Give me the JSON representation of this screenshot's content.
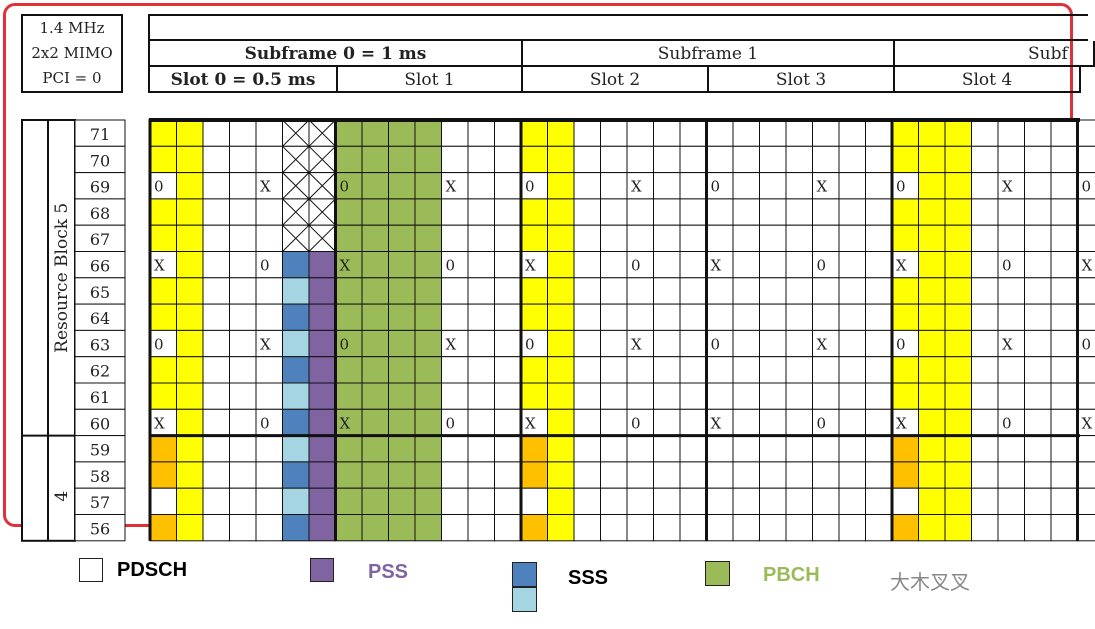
{
  "info": {
    "lines": [
      "1.4 MHz",
      "2x2 MIMO",
      "PCI = 0"
    ]
  },
  "subframes": [
    "Subframe 0 = 1 ms",
    "Subframe 1",
    "Subf"
  ],
  "slots": [
    "Slot 0 = 0.5 ms",
    "Slot 1",
    "Slot 2",
    "Slot 3",
    "Slot 4"
  ],
  "rb_labels": [
    "Resource Block 5",
    "4"
  ],
  "subcarriers": [
    "71",
    "70",
    "69",
    "68",
    "67",
    "66",
    "65",
    "64",
    "63",
    "62",
    "61",
    "60",
    "59",
    "58",
    "57",
    "56"
  ],
  "colors": {
    "frame": "#e0303a",
    "yellow": "#ffff00",
    "orange": "#ffc000",
    "green": "#9bbb59",
    "pss": "#8064a2",
    "sss_dark": "#4f81bd",
    "sss_light": "#a5d5e3",
    "pdsch": "#ffffff"
  },
  "legend": [
    {
      "label": "PDSCH",
      "color": "#ffffff",
      "text_color": "#111111"
    },
    {
      "label": "PSS",
      "color": "#8064a2",
      "text_color": "#8064a2"
    },
    {
      "label": "SSS",
      "color": "#4f81bd",
      "color2": "#a5d5e3",
      "text_color": "#111111"
    },
    {
      "label": "PBCH",
      "color": "#9bbb59",
      "text_color": "#9bbb59"
    }
  ],
  "watermark": "大木叉叉",
  "markers": {
    "zero": "0",
    "x": "X"
  }
}
